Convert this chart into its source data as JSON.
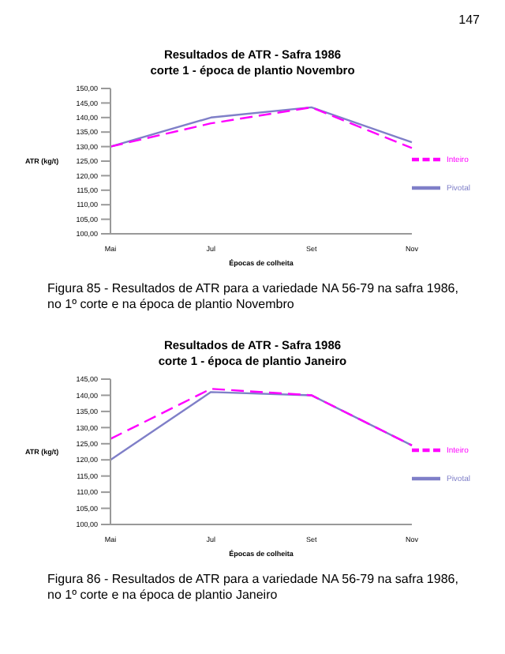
{
  "chart_data": [
    {
      "type": "line",
      "title": "Resultados de ATR - Safra 1986",
      "subtitle": "corte 1 - época de plantio Novembro",
      "xlabel": "Épocas de colheita",
      "ylabel": "ATR (kg/t)",
      "categories": [
        "Mai",
        "Jul",
        "Set",
        "Nov"
      ],
      "series": [
        {
          "name": "Pivotal",
          "color": "#7f7fc8",
          "line_style": "solid",
          "values": [
            130,
            140,
            143.5,
            131.5
          ]
        },
        {
          "name": "Inteiro",
          "color": "#ff00ff",
          "line_style": "dashed",
          "values": [
            130,
            138,
            143.5,
            129.5
          ]
        }
      ],
      "ylim": [
        100,
        150
      ],
      "yticks": [
        {
          "value": 100,
          "label": "100,00"
        },
        {
          "value": 105,
          "label": "105,00"
        },
        {
          "value": 110,
          "label": "110,00"
        },
        {
          "value": 115,
          "label": "115,00"
        },
        {
          "value": 120,
          "label": "120,00"
        },
        {
          "value": 125,
          "label": "125,00"
        },
        {
          "value": 130,
          "label": "130,00"
        },
        {
          "value": 135,
          "label": "135,00"
        },
        {
          "value": 140,
          "label": "140,00"
        },
        {
          "value": 145,
          "label": "145,00"
        },
        {
          "value": 150,
          "label": "150,00"
        }
      ],
      "grid": false,
      "legend": "right",
      "marker": "none",
      "annotations": [
        "147",
        "Figura 85 - Resultados de ATR para a variedade NA 56-79 na safra 1986, no 1º corte e na época de plantio Novembro"
      ]
    },
    {
      "type": "line",
      "title": "Resultados de ATR - Safra 1986",
      "subtitle": "corte 1 - época de plantio Janeiro",
      "xlabel": "Épocas de colheita",
      "ylabel": "ATR (kg/t)",
      "categories": [
        "Mai",
        "Jul",
        "Set",
        "Nov"
      ],
      "series": [
        {
          "name": "Pivotal",
          "color": "#7f7fc8",
          "line_style": "solid",
          "values": [
            120,
            141,
            140,
            124.5
          ]
        },
        {
          "name": "Inteiro",
          "color": "#ff00ff",
          "line_style": "dashed",
          "values": [
            126.5,
            142,
            140,
            124.5
          ]
        }
      ],
      "ylim": [
        100,
        145
      ],
      "yticks": [
        {
          "value": 100,
          "label": "100,00"
        },
        {
          "value": 105,
          "label": "105,00"
        },
        {
          "value": 110,
          "label": "110,00"
        },
        {
          "value": 115,
          "label": "115,00"
        },
        {
          "value": 120,
          "label": "120,00"
        },
        {
          "value": 125,
          "label": "125,00"
        },
        {
          "value": 130,
          "label": "130,00"
        },
        {
          "value": 135,
          "label": "135,00"
        },
        {
          "value": 140,
          "label": "140,00"
        },
        {
          "value": 145,
          "label": "145,00"
        }
      ],
      "grid": false,
      "legend": "right",
      "marker": "none",
      "annotations": [
        "Figura 86 - Resultados de ATR para a variedade NA 56-79 na safra 1986, no 1º corte e na época de plantio Janeiro"
      ]
    }
  ]
}
